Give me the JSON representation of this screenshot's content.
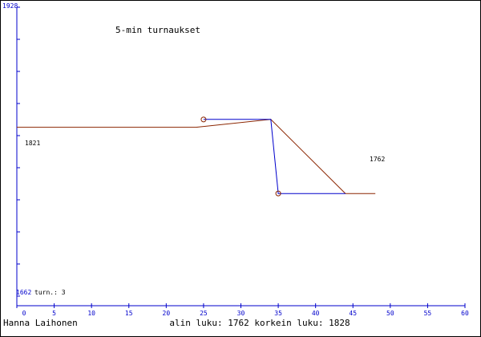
{
  "chart_data": {
    "type": "line",
    "title": "5-min turnaukset",
    "author": "Hanna Laihonen",
    "footer_stats": "alin luku: 1762  korkein luku: 1828",
    "y_top_label": "1928",
    "y_bottom_label": "1662",
    "turn_label": "turn.: 3",
    "start_label": "1821",
    "end_label": "1762",
    "xlim": [
      0,
      60
    ],
    "ylim": [
      1662,
      1928
    ],
    "x_ticks": [
      0,
      5,
      10,
      15,
      20,
      25,
      30,
      35,
      40,
      45,
      50,
      55,
      60
    ],
    "series": [
      {
        "color": "#8b2500",
        "points": [
          [
            0,
            1821
          ],
          [
            24,
            1821
          ],
          [
            34,
            1828
          ],
          [
            44,
            1762
          ],
          [
            48,
            1762
          ]
        ]
      },
      {
        "color": "#0000cc",
        "points": [
          [
            25,
            1828
          ],
          [
            34,
            1828
          ],
          [
            35,
            1762
          ],
          [
            44,
            1762
          ]
        ]
      }
    ],
    "markers": [
      {
        "x": 25,
        "y": 1828,
        "color": "#8b2500"
      },
      {
        "x": 35,
        "y": 1762,
        "color": "#8b2500"
      }
    ],
    "colors": {
      "axis": "#0000cc",
      "frame": "#000000"
    }
  }
}
